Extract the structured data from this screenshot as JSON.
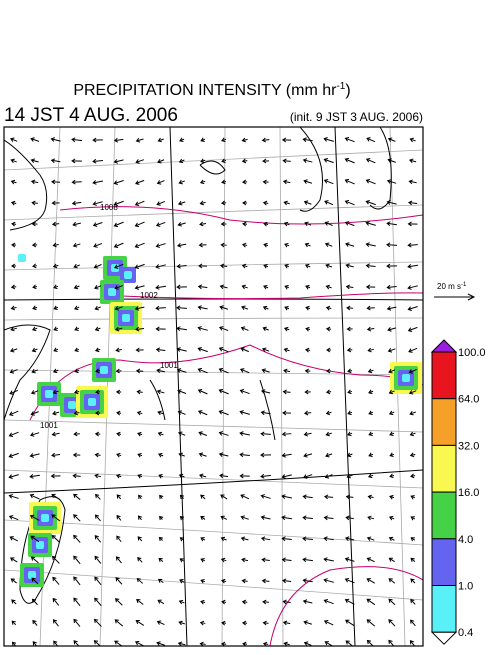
{
  "title": {
    "main": "PRECIPITATION INTENSITY (mm hr",
    "exponent": "-1",
    "close": ")"
  },
  "valid_time": "14 JST 4 AUG. 2006",
  "init_time": "(init. 9 JST 3 AUG. 2006)",
  "reference_vector": {
    "label": "20 m s",
    "exponent": "-1"
  },
  "contour_labels": [
    "1008",
    "1002",
    "1001",
    "1001"
  ],
  "colorbar": {
    "labels": [
      "100.0",
      "64.0",
      "32.0",
      "16.0",
      "4.0",
      "1.0",
      "0.4"
    ],
    "colors": [
      "#9a1ee0",
      "#e8141e",
      "#f5a028",
      "#f8f850",
      "#46d246",
      "#6464f0",
      "#5af0f8",
      "#ffffff"
    ]
  }
}
